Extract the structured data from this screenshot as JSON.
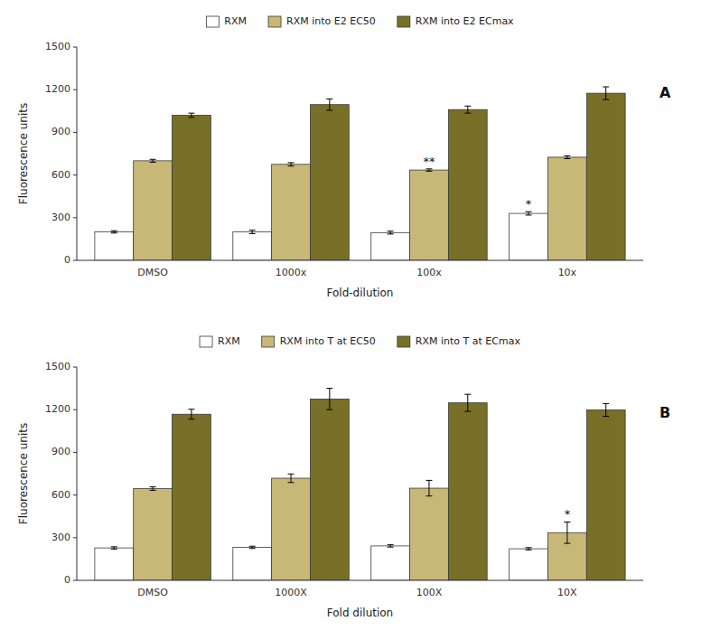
{
  "chart_data": [
    {
      "type": "bar",
      "title": "A",
      "categories": [
        "DMSO",
        "1000x",
        "100x",
        "10x"
      ],
      "series": [
        {
          "name": "RXM",
          "color": "#ffffff",
          "values": [
            200,
            200,
            195,
            330
          ],
          "errors": [
            8,
            12,
            10,
            12
          ]
        },
        {
          "name": "RXM into E2 EC50",
          "color": "#c8b878",
          "values": [
            700,
            675,
            635,
            725
          ],
          "errors": [
            10,
            12,
            8,
            10
          ]
        },
        {
          "name": "RXM into E2 ECmax",
          "color": "#787028",
          "values": [
            1020,
            1095,
            1060,
            1175
          ],
          "errors": [
            15,
            40,
            25,
            45
          ]
        }
      ],
      "ylim": [
        0,
        1500
      ],
      "yticks": [
        0,
        300,
        600,
        900,
        1200,
        1500
      ],
      "ylabel": "Fluorescence units",
      "xlabel": "Fold-dilution",
      "annotations": [
        {
          "text": "**",
          "category": "100x",
          "series": "RXM into E2 EC50"
        },
        {
          "text": "*",
          "category": "10x",
          "series": "RXM"
        }
      ],
      "grid": false,
      "legend": "top"
    },
    {
      "type": "bar",
      "title": "B",
      "categories": [
        "DMSO",
        "1000X",
        "100X",
        "10X"
      ],
      "series": [
        {
          "name": "RXM",
          "color": "#ffffff",
          "values": [
            228,
            232,
            242,
            222
          ],
          "errors": [
            8,
            8,
            8,
            8
          ]
        },
        {
          "name": "RXM into T at EC50",
          "color": "#c8b878",
          "values": [
            645,
            718,
            648,
            335
          ],
          "errors": [
            12,
            30,
            55,
            75
          ]
        },
        {
          "name": "RXM into T at ECmax",
          "color": "#787028",
          "values": [
            1168,
            1275,
            1248,
            1198
          ],
          "errors": [
            35,
            75,
            60,
            45
          ]
        }
      ],
      "ylim": [
        0,
        1500
      ],
      "yticks": [
        0,
        300,
        600,
        900,
        1200,
        1500
      ],
      "ylabel": "Fluorescence units",
      "xlabel": "Fold dilution",
      "annotations": [
        {
          "text": "*",
          "category": "10X",
          "series": "RXM into T at EC50"
        }
      ],
      "grid": false,
      "legend": "top"
    }
  ]
}
